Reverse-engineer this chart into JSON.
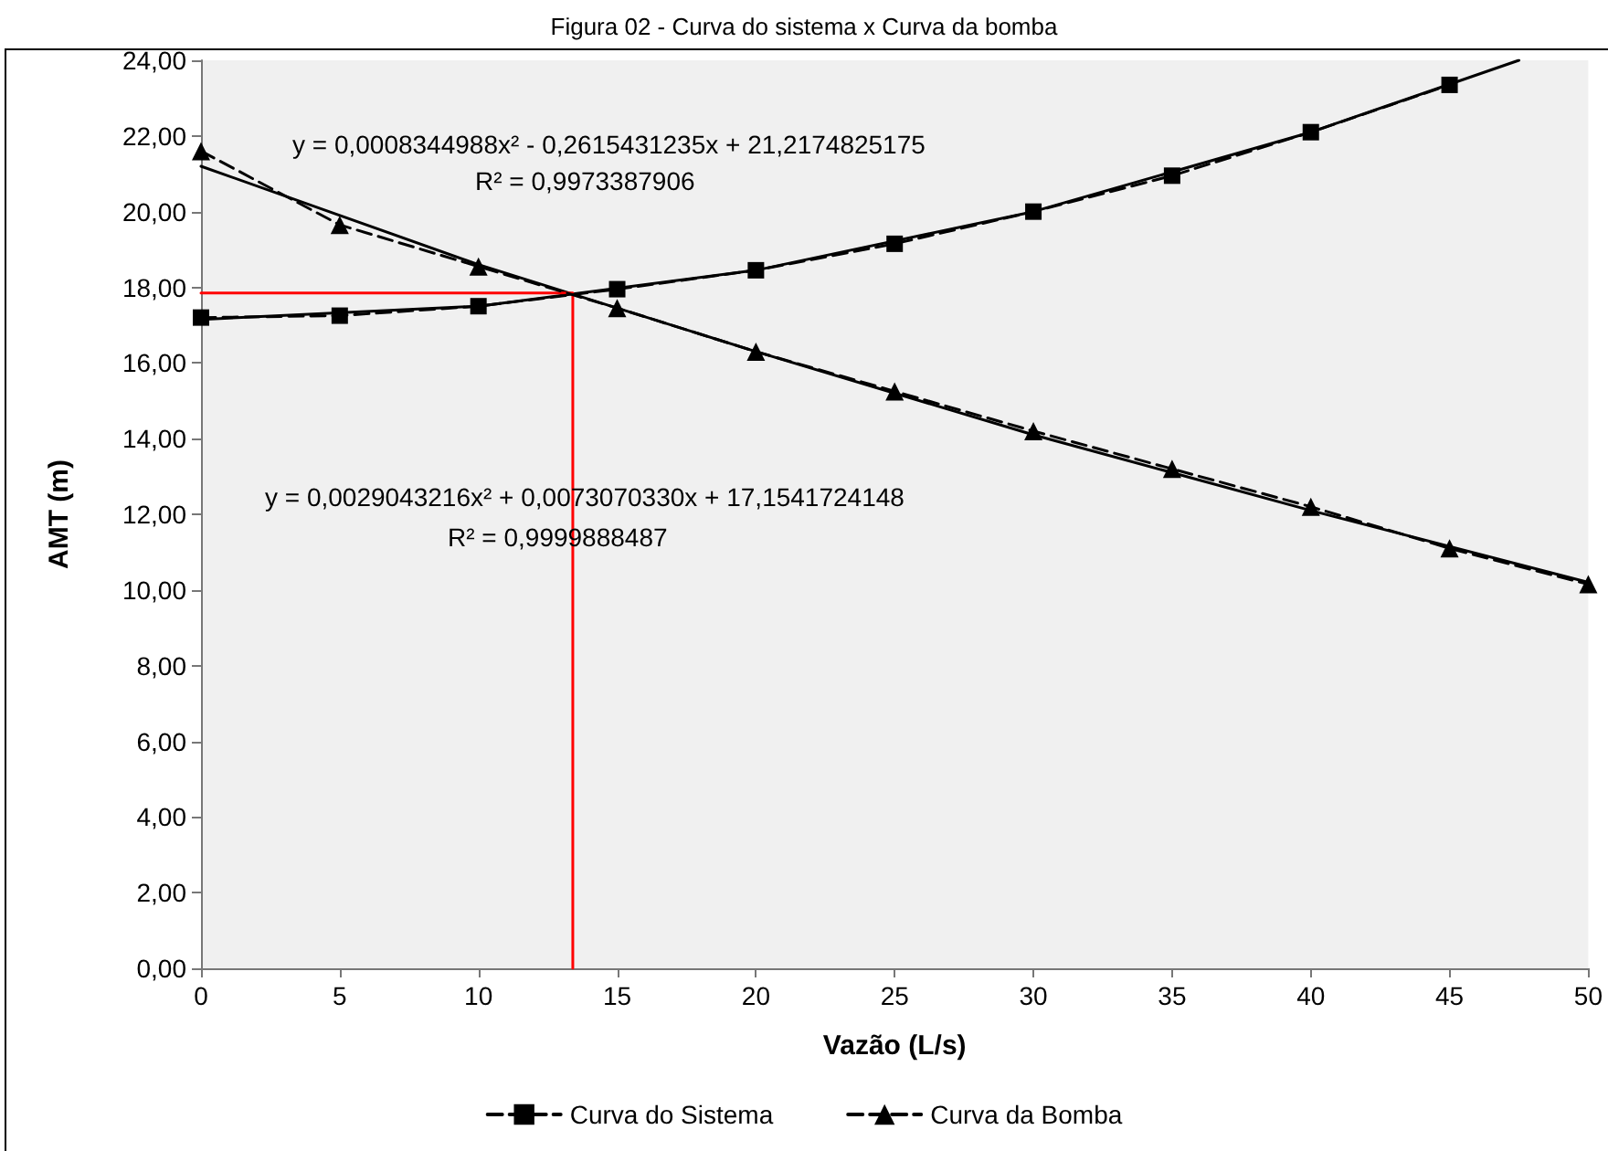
{
  "chart_data": {
    "type": "line",
    "title": "Figura 02 - Curva do sistema x Curva da bomba",
    "xlabel": "Vazão (L/s)",
    "ylabel": "AMT (m)",
    "x": [
      0,
      5,
      10,
      15,
      20,
      25,
      30,
      35,
      40,
      45,
      50
    ],
    "series": [
      {
        "name": "Curva do Sistema",
        "color": "#000000",
        "marker": "square",
        "line_style": "dashed",
        "x": [
          0,
          5,
          10,
          15,
          20,
          25,
          30,
          35,
          40,
          45
        ],
        "values": [
          17.2,
          17.25,
          17.5,
          17.95,
          18.45,
          19.15,
          20.0,
          20.95,
          22.1,
          23.35
        ]
      },
      {
        "name": "Curva da Bomba",
        "color": "#000000",
        "marker": "triangle",
        "line_style": "dashed",
        "values": [
          21.6,
          19.65,
          18.55,
          17.45,
          16.3,
          15.25,
          14.2,
          13.2,
          12.2,
          11.1,
          10.15
        ]
      },
      {
        "color": "#000000",
        "marker": "none",
        "line_style": "solid",
        "x": [
          0,
          10,
          20,
          30,
          40,
          47.5
        ],
        "values": [
          17.15,
          17.5,
          18.45,
          20.0,
          22.1,
          24.0
        ]
      },
      {
        "color": "#000000",
        "marker": "none",
        "line_style": "solid",
        "x": [
          0,
          10,
          20,
          30,
          40,
          50
        ],
        "values": [
          21.2,
          18.6,
          16.3,
          14.1,
          12.1,
          10.2
        ]
      },
      {
        "color": "#ff0000",
        "marker": "none",
        "line_style": "solid",
        "x": [
          0,
          13.4,
          13.4
        ],
        "values": [
          17.85,
          17.85,
          0
        ]
      }
    ],
    "annotations": [
      "y = 0,0008344988x² - 0,2615431235x + 21,2174825175",
      "R² = 0,9973387906",
      "y = 0,0029043216x² + 0,0073070330x + 17,1541724148",
      "R² = 0,9999888487"
    ],
    "xlim": [
      0,
      50
    ],
    "xticks": [
      0,
      5,
      10,
      15,
      20,
      25,
      30,
      35,
      40,
      45,
      50
    ],
    "ylim": [
      0,
      24
    ],
    "yticks": [
      {
        "value": 0,
        "label": "0,00"
      },
      {
        "value": 2,
        "label": "2,00"
      },
      {
        "value": 4,
        "label": "4,00"
      },
      {
        "value": 6,
        "label": "6,00"
      },
      {
        "value": 8,
        "label": "8,00"
      },
      {
        "value": 10,
        "label": "10,00"
      },
      {
        "value": 12,
        "label": "12,00"
      },
      {
        "value": 14,
        "label": "14,00"
      },
      {
        "value": 16,
        "label": "16,00"
      },
      {
        "value": 18,
        "label": "18,00"
      },
      {
        "value": 20,
        "label": "20,00"
      },
      {
        "value": 22,
        "label": "22,00"
      },
      {
        "value": 24,
        "label": "24,00"
      }
    ],
    "grid": false,
    "legend": "bottom"
  }
}
